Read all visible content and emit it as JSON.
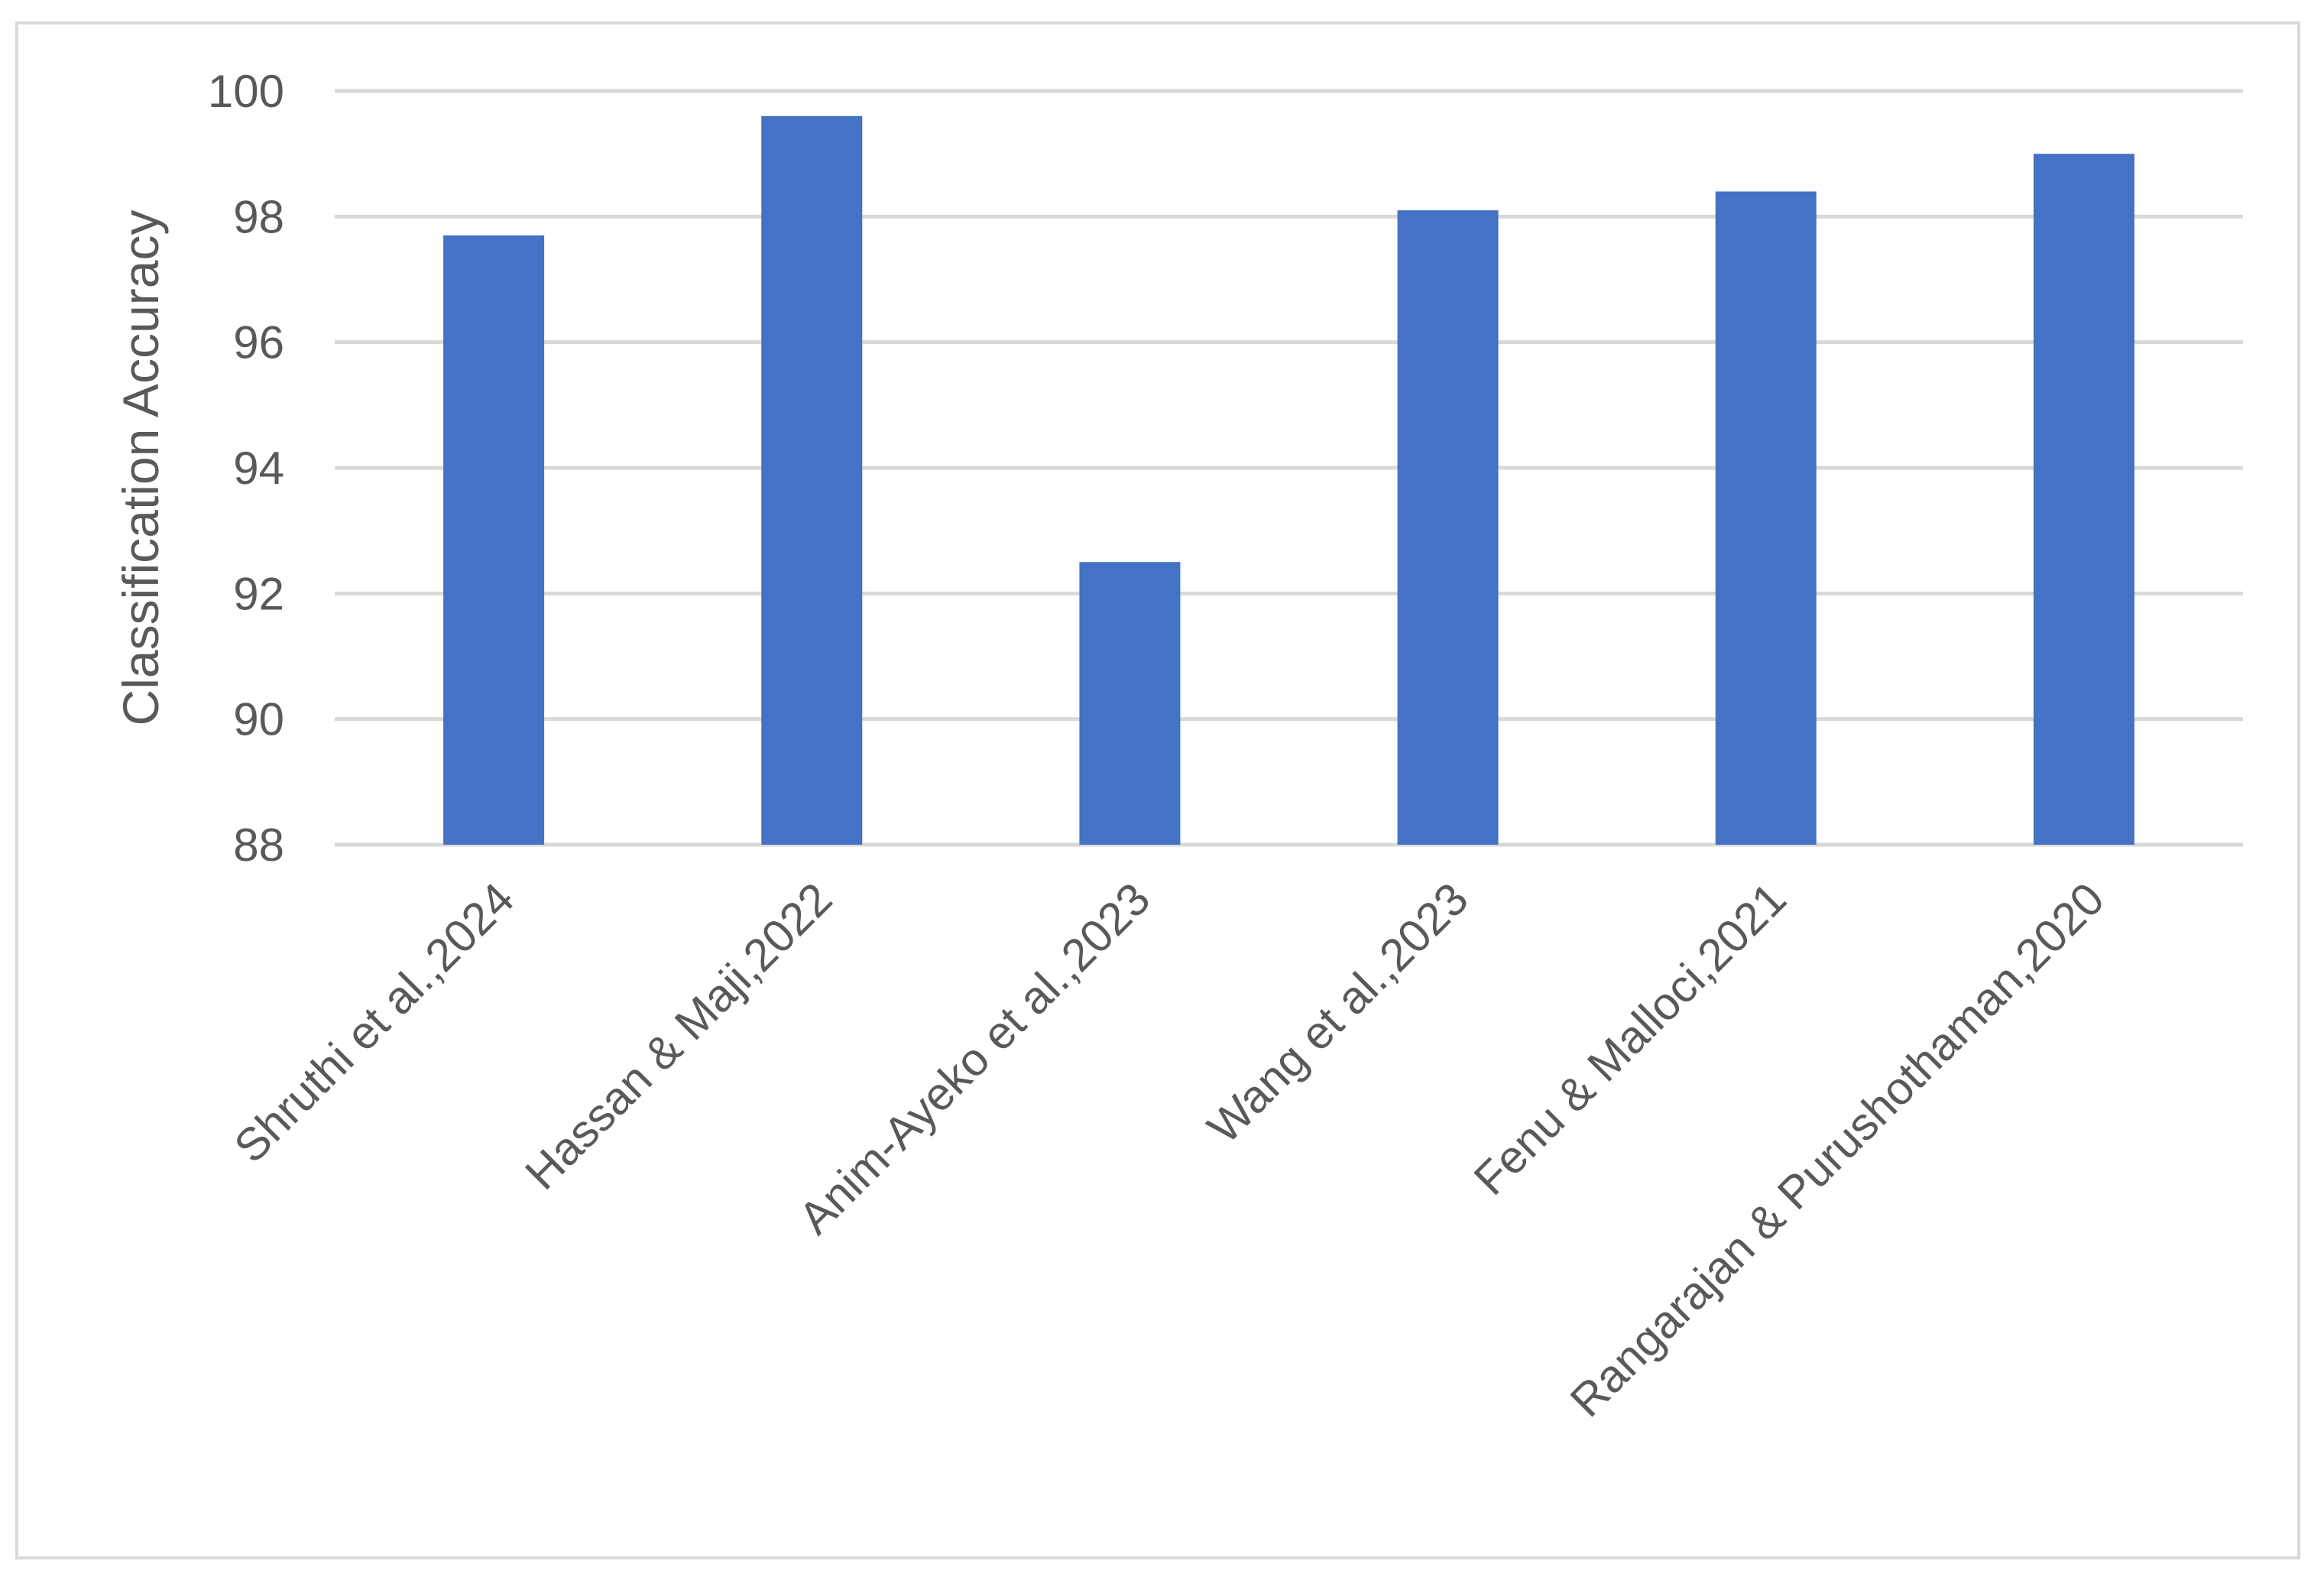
{
  "chart_data": {
    "type": "bar",
    "title": "",
    "xlabel": "",
    "ylabel": "Classification Accuracy",
    "ylim": [
      88,
      100
    ],
    "yticks": [
      88,
      90,
      92,
      94,
      96,
      98,
      100
    ],
    "grid": true,
    "legend": "none",
    "categories": [
      "Shruthi et al.,2024",
      "Hassan & Maji,2022",
      "Anim-Ayeko et al.,2023",
      "Wang et al.,2023",
      "Fenu & Malloci,2021",
      "Rangarajan & Purushothaman,2020"
    ],
    "values": [
      97.7,
      99.6,
      92.5,
      98.1,
      98.4,
      99.0
    ],
    "colors": {
      "bar": "#4472C4",
      "grid": "#d9d9d9",
      "text": "#595959",
      "frame": "#d9d9d9"
    }
  }
}
